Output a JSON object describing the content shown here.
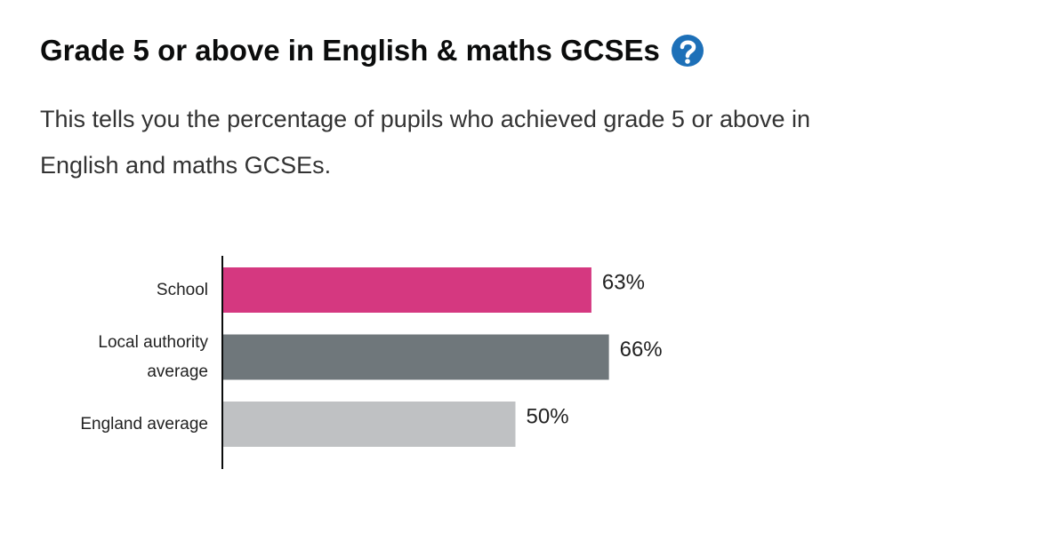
{
  "chart_data": {
    "type": "hbar",
    "title": "Grade 5 or above in English & maths GCSEs",
    "subtitle": "This tells you the percentage of pupils who achieved grade 5 or above in English and maths GCSEs.",
    "categories": [
      "School",
      "Local authority average",
      "England average"
    ],
    "values": [
      63,
      66,
      50
    ],
    "value_labels": [
      "63%",
      "66%",
      "50%"
    ],
    "colors": [
      "#d53880",
      "#6f777b",
      "#bfc1c3"
    ]
  }
}
